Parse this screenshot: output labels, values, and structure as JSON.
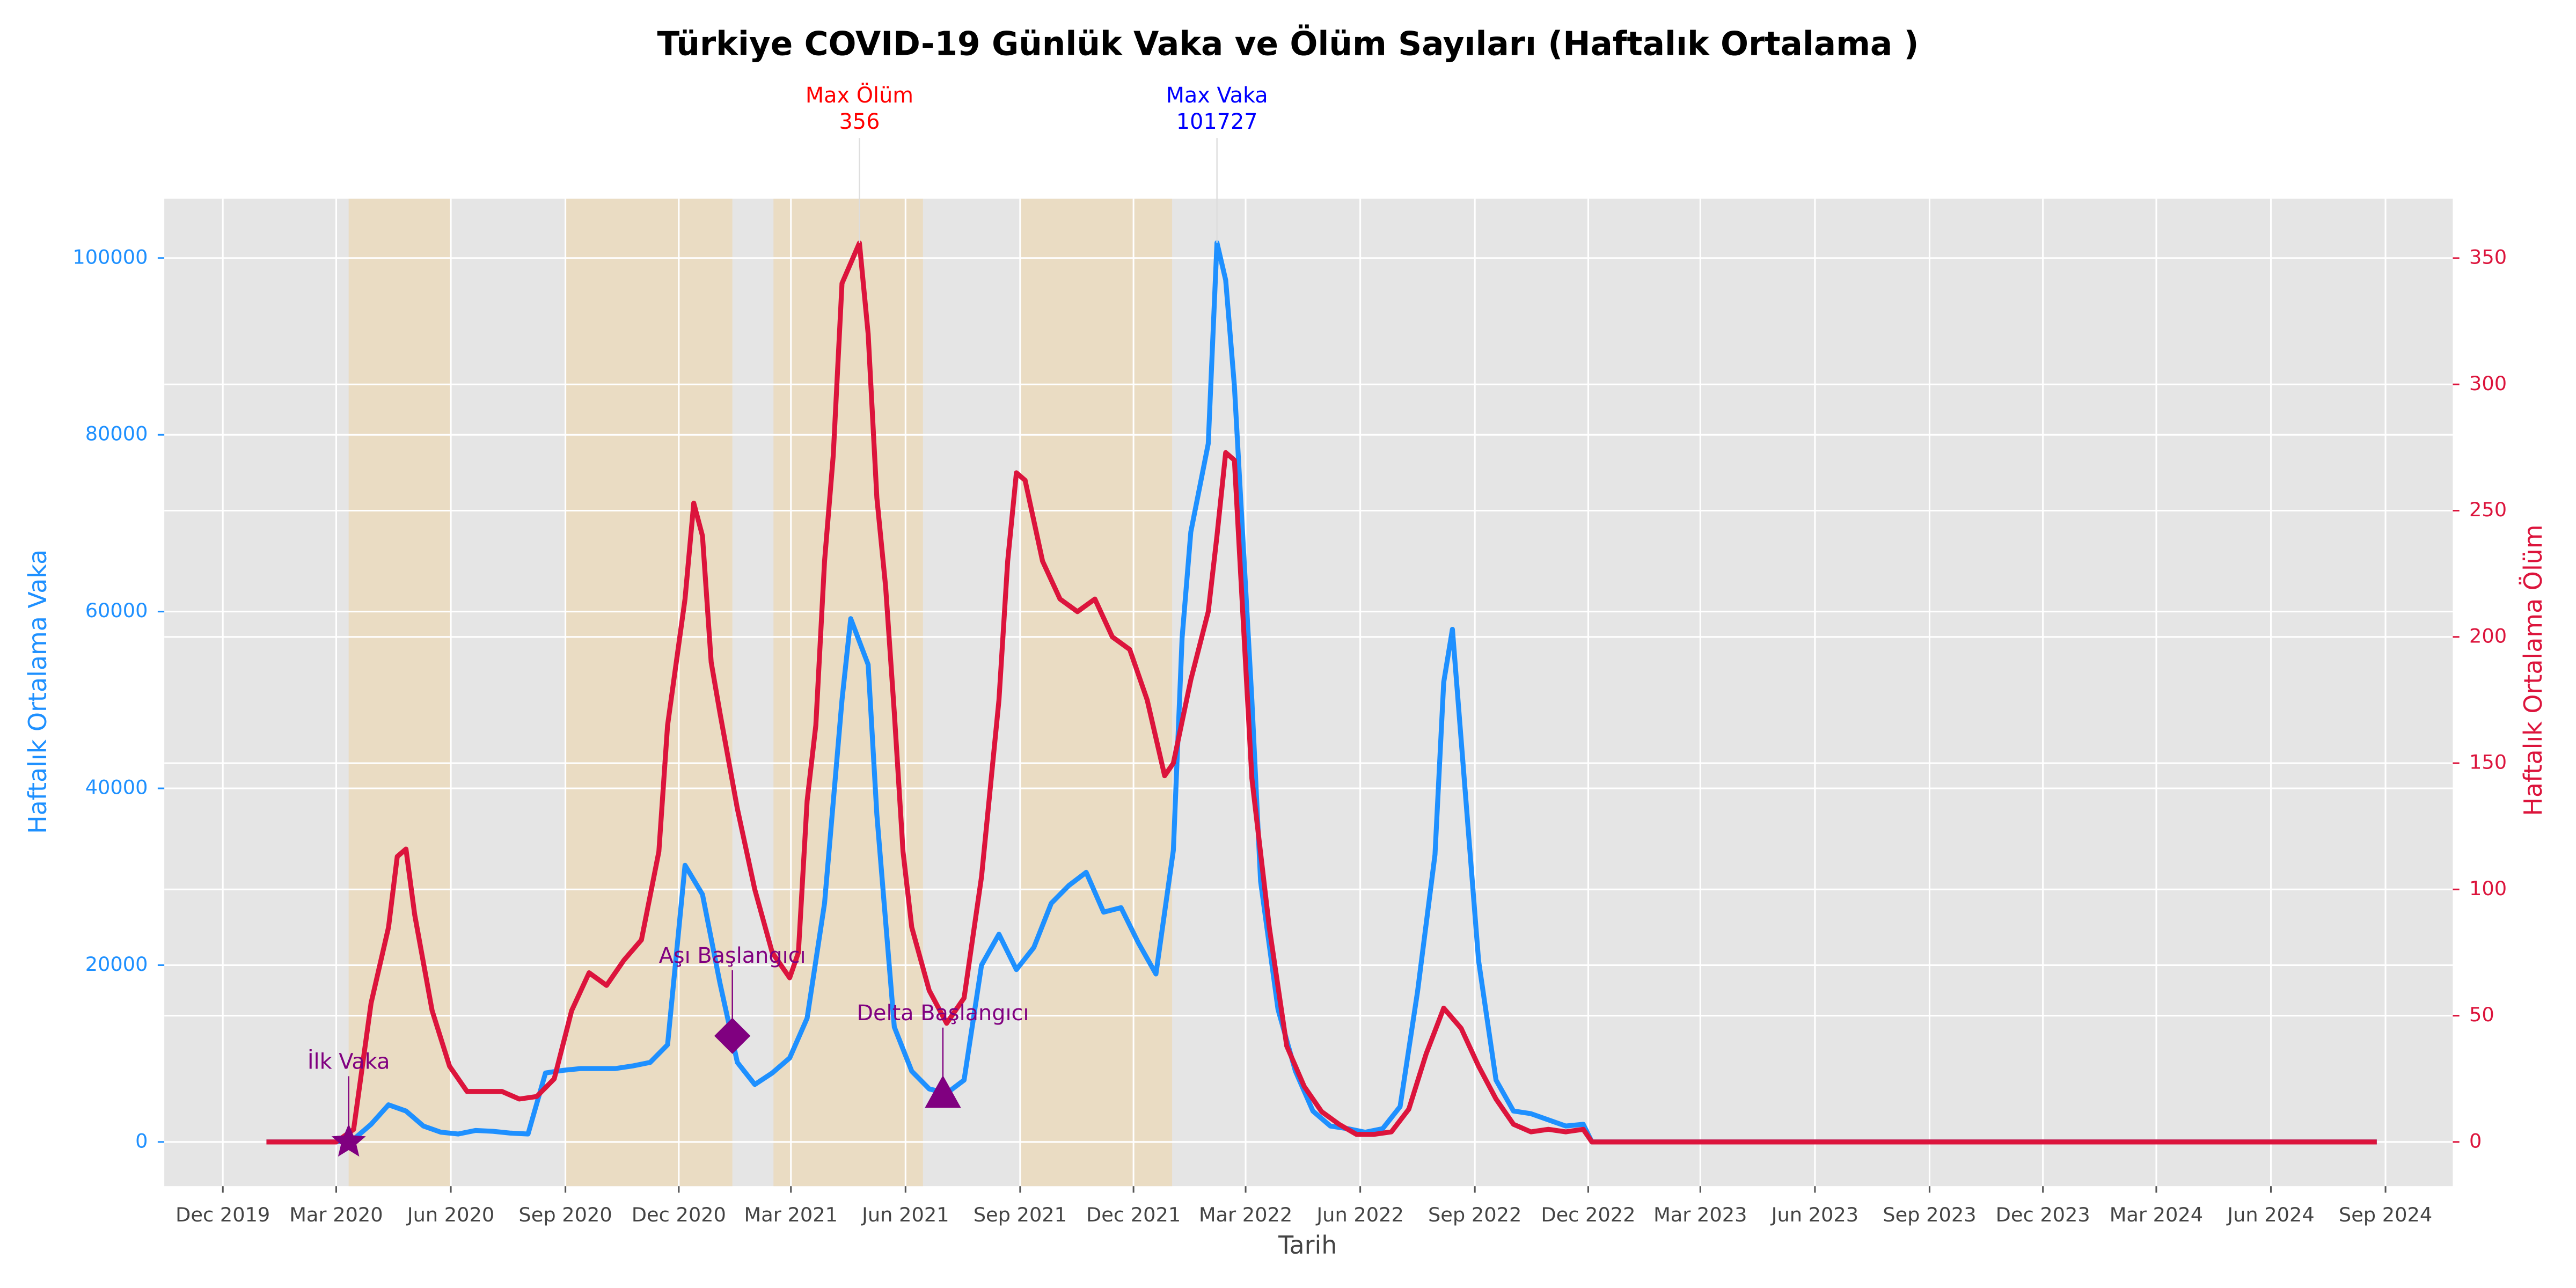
{
  "chart_data": {
    "type": "line",
    "title": "Türkiye COVID-19 Günlük Vaka ve Ölüm Sayıları (Haftalık Ortalama )",
    "x_label": "Tarih",
    "y_label": "Haftalık Ortalama Vaka",
    "y2_label": "Haftalık Ortalama Ölüm",
    "grid": true,
    "background": "#e5e5e5",
    "xlim": [
      "2019-10-15",
      "2024-10-25"
    ],
    "xticks": [
      {
        "value": "2019-12-01",
        "label": "Dec 2019"
      },
      {
        "value": "2020-03-01",
        "label": "Mar 2020"
      },
      {
        "value": "2020-06-01",
        "label": "Jun 2020"
      },
      {
        "value": "2020-09-01",
        "label": "Sep 2020"
      },
      {
        "value": "2020-12-01",
        "label": "Dec 2020"
      },
      {
        "value": "2021-03-01",
        "label": "Mar 2021"
      },
      {
        "value": "2021-06-01",
        "label": "Jun 2021"
      },
      {
        "value": "2021-09-01",
        "label": "Sep 2021"
      },
      {
        "value": "2021-12-01",
        "label": "Dec 2021"
      },
      {
        "value": "2022-03-01",
        "label": "Mar 2022"
      },
      {
        "value": "2022-06-01",
        "label": "Jun 2022"
      },
      {
        "value": "2022-09-01",
        "label": "Sep 2022"
      },
      {
        "value": "2022-12-01",
        "label": "Dec 2022"
      },
      {
        "value": "2023-03-01",
        "label": "Mar 2023"
      },
      {
        "value": "2023-06-01",
        "label": "Jun 2023"
      },
      {
        "value": "2023-09-01",
        "label": "Sep 2023"
      },
      {
        "value": "2023-12-01",
        "label": "Dec 2023"
      },
      {
        "value": "2024-03-01",
        "label": "Mar 2024"
      },
      {
        "value": "2024-06-01",
        "label": "Jun 2024"
      },
      {
        "value": "2024-09-01",
        "label": "Sep 2024"
      }
    ],
    "ylim": [
      -5000,
      106700
    ],
    "yticks": [
      0,
      20000,
      40000,
      60000,
      80000,
      100000
    ],
    "y2lim": [
      -17.5,
      373.5
    ],
    "y2ticks": [
      0,
      50,
      100,
      150,
      200,
      250,
      300,
      350
    ],
    "y_color": "#1e90ff",
    "y2_color": "#dc143c",
    "shaded_periods": {
      "color": "#eadcc3",
      "ranges": [
        [
          "2020-03-11",
          "2020-06-01"
        ],
        [
          "2020-09-01",
          "2021-01-13"
        ],
        [
          "2021-02-15",
          "2021-06-15"
        ],
        [
          "2021-09-01",
          "2022-01-01"
        ]
      ]
    },
    "series": [
      {
        "color": "#1e90ff",
        "axis": "y",
        "x": [
          "2020-01-05",
          "2020-03-01",
          "2020-03-15",
          "2020-03-29",
          "2020-04-12",
          "2020-04-26",
          "2020-05-10",
          "2020-05-24",
          "2020-06-07",
          "2020-06-21",
          "2020-07-05",
          "2020-07-19",
          "2020-08-02",
          "2020-08-16",
          "2020-08-30",
          "2020-09-13",
          "2020-09-27",
          "2020-10-11",
          "2020-10-25",
          "2020-11-08",
          "2020-11-22",
          "2020-12-06",
          "2020-12-20",
          "2021-01-03",
          "2021-01-17",
          "2021-01-31",
          "2021-02-14",
          "2021-02-28",
          "2021-03-14",
          "2021-03-28",
          "2021-04-11",
          "2021-04-18",
          "2021-05-02",
          "2021-05-09",
          "2021-05-23",
          "2021-06-06",
          "2021-06-20",
          "2021-07-04",
          "2021-07-18",
          "2021-08-01",
          "2021-08-15",
          "2021-08-29",
          "2021-09-12",
          "2021-09-26",
          "2021-10-10",
          "2021-10-24",
          "2021-11-07",
          "2021-11-21",
          "2021-12-05",
          "2021-12-19",
          "2022-01-02",
          "2022-01-09",
          "2022-01-16",
          "2022-01-30",
          "2022-02-06",
          "2022-02-13",
          "2022-02-20",
          "2022-03-06",
          "2022-03-13",
          "2022-03-27",
          "2022-04-10",
          "2022-04-24",
          "2022-05-08",
          "2022-05-22",
          "2022-06-05",
          "2022-06-19",
          "2022-07-03",
          "2022-07-17",
          "2022-07-31",
          "2022-08-07",
          "2022-08-14",
          "2022-08-28",
          "2022-09-04",
          "2022-09-18",
          "2022-10-02",
          "2022-10-16",
          "2022-10-30",
          "2022-11-13",
          "2022-11-27",
          "2022-12-04",
          "2024-08-25"
        ],
        "values": [
          0,
          0,
          300,
          2000,
          4200,
          3500,
          1800,
          1100,
          900,
          1300,
          1200,
          1000,
          900,
          7800,
          8100,
          8300,
          8300,
          8300,
          8600,
          9000,
          11000,
          31300,
          28000,
          18000,
          9000,
          6500,
          7800,
          9500,
          14000,
          27000,
          50000,
          59200,
          54000,
          37000,
          13000,
          8000,
          6000,
          5500,
          7000,
          20000,
          23500,
          19500,
          22000,
          27000,
          29000,
          30500,
          26000,
          26500,
          22500,
          19000,
          33000,
          57000,
          69000,
          79000,
          101727,
          97500,
          85500,
          50000,
          29500,
          15000,
          8000,
          3500,
          1800,
          1500,
          1100,
          1500,
          4000,
          17000,
          32500,
          52000,
          58000,
          33000,
          20500,
          7000,
          3500,
          3200,
          2500,
          1800,
          2000,
          0,
          0
        ]
      },
      {
        "color": "#dc143c",
        "axis": "y2",
        "x": [
          "2020-01-05",
          "2020-03-01",
          "2020-03-15",
          "2020-03-29",
          "2020-04-12",
          "2020-04-19",
          "2020-04-26",
          "2020-05-03",
          "2020-05-17",
          "2020-05-31",
          "2020-06-14",
          "2020-06-28",
          "2020-07-12",
          "2020-07-26",
          "2020-08-09",
          "2020-08-23",
          "2020-09-06",
          "2020-09-20",
          "2020-10-04",
          "2020-10-18",
          "2020-11-01",
          "2020-11-15",
          "2020-11-22",
          "2020-11-29",
          "2020-12-06",
          "2020-12-13",
          "2020-12-20",
          "2020-12-27",
          "2021-01-03",
          "2021-01-17",
          "2021-01-31",
          "2021-02-14",
          "2021-02-28",
          "2021-03-07",
          "2021-03-14",
          "2021-03-21",
          "2021-03-28",
          "2021-04-04",
          "2021-04-11",
          "2021-04-25",
          "2021-05-02",
          "2021-05-09",
          "2021-05-16",
          "2021-05-23",
          "2021-05-30",
          "2021-06-06",
          "2021-06-20",
          "2021-07-04",
          "2021-07-18",
          "2021-08-01",
          "2021-08-15",
          "2021-08-22",
          "2021-08-29",
          "2021-09-05",
          "2021-09-19",
          "2021-10-03",
          "2021-10-17",
          "2021-10-31",
          "2021-11-14",
          "2021-11-28",
          "2021-12-12",
          "2021-12-26",
          "2022-01-02",
          "2022-01-16",
          "2022-01-30",
          "2022-02-06",
          "2022-02-13",
          "2022-02-20",
          "2022-03-06",
          "2022-03-20",
          "2022-04-03",
          "2022-04-17",
          "2022-05-01",
          "2022-05-15",
          "2022-05-29",
          "2022-06-12",
          "2022-06-26",
          "2022-07-10",
          "2022-07-24",
          "2022-08-07",
          "2022-08-21",
          "2022-09-04",
          "2022-09-18",
          "2022-10-02",
          "2022-10-16",
          "2022-10-30",
          "2022-11-13",
          "2022-11-27",
          "2022-12-04",
          "2024-08-25"
        ],
        "values": [
          0,
          0,
          5,
          55,
          85,
          113,
          116,
          90,
          52,
          30,
          20,
          20,
          20,
          17,
          18,
          25,
          52,
          67,
          62,
          72,
          80,
          115,
          165,
          190,
          215,
          253,
          240,
          190,
          170,
          132,
          100,
          75,
          65,
          75,
          135,
          165,
          230,
          272,
          340,
          356,
          320,
          255,
          220,
          170,
          115,
          85,
          60,
          47,
          57,
          105,
          175,
          230,
          265,
          262,
          230,
          215,
          210,
          215,
          200,
          195,
          175,
          145,
          150,
          183,
          210,
          240,
          273,
          270,
          144,
          85,
          38,
          22,
          12,
          7,
          3,
          3,
          4,
          13,
          35,
          53,
          45,
          30,
          17,
          7,
          4,
          5,
          4,
          5,
          0,
          0
        ]
      }
    ],
    "annotations": [
      {
        "text": "İlk Vaka",
        "x": "2020-03-11",
        "value": 1,
        "marker": "star",
        "color": "#800080"
      },
      {
        "text": "Aşı Başlangıcı",
        "x": "2021-01-13",
        "value": 12000,
        "marker": "diamond",
        "color": "#800080"
      },
      {
        "text": "Delta Başlangıcı",
        "x": "2021-07-01",
        "value": 5500,
        "marker": "triangle",
        "color": "#800080"
      }
    ],
    "max_labels": [
      {
        "text": "Max Ölüm",
        "x": "2021-04-25",
        "value": 356,
        "axis": "y2",
        "color": "#ff0000"
      },
      {
        "text": "Max Vaka",
        "x": "2022-02-06",
        "value": 101727,
        "axis": "y",
        "color": "#0000ff"
      }
    ]
  }
}
